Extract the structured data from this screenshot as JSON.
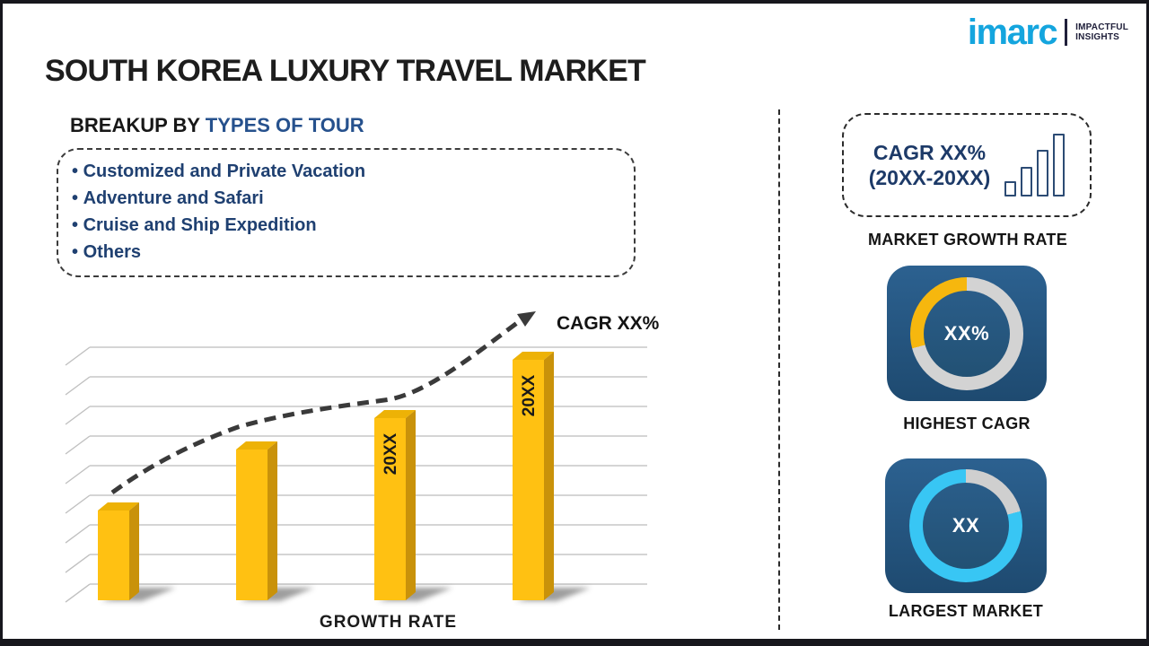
{
  "logo": {
    "brand": "imarc",
    "tagline_line1": "IMPACTFUL",
    "tagline_line2": "INSIGHTS",
    "brand_color": "#14a5de",
    "tagline_color": "#20203b"
  },
  "title": "SOUTH KOREA LUXURY TRAVEL MARKET",
  "breakup": {
    "heading_prefix": "BREAKUP BY ",
    "heading_accent": "TYPES OF TOUR",
    "items": [
      "Customized and Private Vacation",
      "Adventure and Safari",
      "Cruise and Ship Expedition",
      "Others"
    ]
  },
  "chart_data": {
    "type": "bar",
    "xlabel": "GROWTH RATE",
    "bar_labels": [
      "",
      "",
      "20XX",
      "20XX"
    ],
    "relative_heights": [
      100,
      168,
      203,
      268
    ],
    "trend_label": "CAGR XX%",
    "trend_style": "dashed-arrow",
    "trend_color": "#3a3a3a",
    "gridline_count": 9,
    "grid": true,
    "legend": false,
    "bar_color_front": "#ffc112",
    "bar_color_top": "#edb206",
    "bar_color_side": "#c9920a"
  },
  "right_panel": {
    "growth_box": {
      "line1": "CAGR XX%",
      "line2": "(20XX-20XX)",
      "icon": "ascending-bars-icon",
      "caption": "MARKET GROWTH RATE"
    },
    "donut1": {
      "value_label": "XX%",
      "caption": "HIGHEST CAGR",
      "accent_color": "#f6b70e",
      "track_color": "#d3d3d3",
      "accent_sweep_deg": 105
    },
    "donut2": {
      "value_label": "XX",
      "caption": "LARGEST MARKET",
      "accent_color": "#38c6f4",
      "track_color": "#cfcfcf",
      "track_sweep_deg": 75
    }
  }
}
